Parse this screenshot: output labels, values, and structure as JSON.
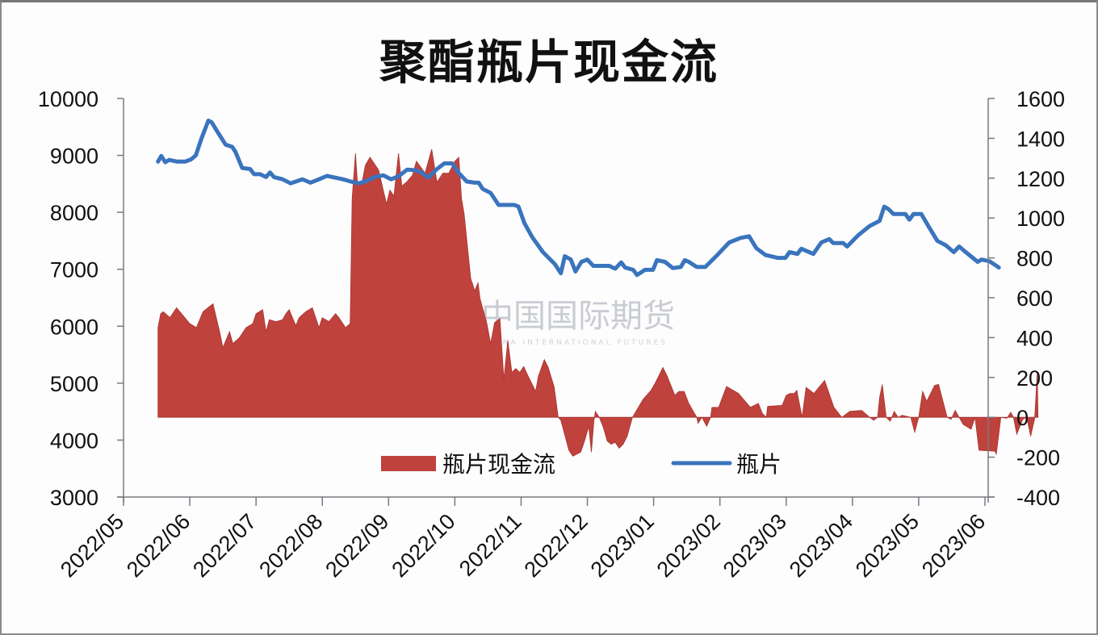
{
  "chart_data": {
    "type": "area+line",
    "title": "聚酯瓶片现金流",
    "xlabel": "",
    "ylabel_left": "",
    "ylabel_right": "",
    "x_tick_labels": [
      "2022/05",
      "2022/06",
      "2022/07",
      "2022/08",
      "2022/09",
      "2022/10",
      "2022/11",
      "2022/12",
      "2023/01",
      "2023/02",
      "2023/03",
      "2023/04",
      "2023/05",
      "2023/06"
    ],
    "y_left": {
      "ticks": [
        10000,
        9000,
        8000,
        7000,
        6000,
        5000,
        4000,
        3000
      ],
      "range": [
        3000,
        10000
      ]
    },
    "y_right": {
      "ticks": [
        1600,
        1400,
        1200,
        1000,
        800,
        600,
        400,
        200,
        0,
        -200,
        -400
      ],
      "range": [
        -400,
        1600
      ]
    },
    "grid": false,
    "legend_position": "bottom-center-inside",
    "series": [
      {
        "name": "瓶片现金流",
        "kind": "area",
        "axis": "right",
        "color": "#c0423d",
        "points_month_offset_value": [
          [
            0.52,
            0
          ],
          [
            0.52,
            450
          ],
          [
            0.56,
            520
          ],
          [
            0.6,
            530
          ],
          [
            0.7,
            500
          ],
          [
            0.8,
            550
          ],
          [
            0.9,
            510
          ],
          [
            1.0,
            470
          ],
          [
            1.1,
            450
          ],
          [
            1.2,
            530
          ],
          [
            1.35,
            570
          ],
          [
            1.45,
            430
          ],
          [
            1.5,
            350
          ],
          [
            1.6,
            430
          ],
          [
            1.65,
            370
          ],
          [
            1.75,
            400
          ],
          [
            1.85,
            450
          ],
          [
            1.95,
            470
          ],
          [
            2.0,
            520
          ],
          [
            2.1,
            540
          ],
          [
            2.15,
            430
          ],
          [
            2.2,
            490
          ],
          [
            2.3,
            480
          ],
          [
            2.4,
            490
          ],
          [
            2.45,
            520
          ],
          [
            2.5,
            540
          ],
          [
            2.6,
            460
          ],
          [
            2.65,
            500
          ],
          [
            2.75,
            530
          ],
          [
            2.85,
            550
          ],
          [
            2.95,
            450
          ],
          [
            3.0,
            500
          ],
          [
            3.1,
            480
          ],
          [
            3.2,
            520
          ],
          [
            3.25,
            500
          ],
          [
            3.35,
            450
          ],
          [
            3.42,
            470
          ],
          [
            3.45,
            1100
          ],
          [
            3.5,
            1325
          ],
          [
            3.53,
            1180
          ],
          [
            3.6,
            1180
          ],
          [
            3.65,
            1265
          ],
          [
            3.72,
            1305
          ],
          [
            3.8,
            1265
          ],
          [
            3.85,
            1240
          ],
          [
            3.92,
            1140
          ],
          [
            3.97,
            1070
          ],
          [
            4.02,
            1140
          ],
          [
            4.08,
            1110
          ],
          [
            4.15,
            1325
          ],
          [
            4.2,
            1160
          ],
          [
            4.27,
            1180
          ],
          [
            4.36,
            1215
          ],
          [
            4.42,
            1285
          ],
          [
            4.55,
            1225
          ],
          [
            4.65,
            1345
          ],
          [
            4.73,
            1180
          ],
          [
            4.82,
            1225
          ],
          [
            4.91,
            1225
          ],
          [
            5.0,
            1285
          ],
          [
            5.06,
            1305
          ],
          [
            5.1,
            1100
          ],
          [
            5.14,
            1020
          ],
          [
            5.24,
            695
          ],
          [
            5.3,
            635
          ],
          [
            5.35,
            675
          ],
          [
            5.38,
            595
          ],
          [
            5.48,
            475
          ],
          [
            5.54,
            370
          ],
          [
            5.6,
            475
          ],
          [
            5.68,
            495
          ],
          [
            5.74,
            190
          ],
          [
            5.8,
            385
          ],
          [
            5.86,
            225
          ],
          [
            5.92,
            245
          ],
          [
            5.98,
            225
          ],
          [
            6.04,
            255
          ],
          [
            6.1,
            210
          ],
          [
            6.22,
            130
          ],
          [
            6.26,
            205
          ],
          [
            6.35,
            290
          ],
          [
            6.41,
            250
          ],
          [
            6.5,
            150
          ],
          [
            6.56,
            0
          ],
          [
            6.6,
            -15
          ],
          [
            6.72,
            -165
          ],
          [
            6.78,
            -195
          ],
          [
            6.9,
            -175
          ],
          [
            6.96,
            -115
          ],
          [
            7.02,
            -45
          ],
          [
            7.06,
            -175
          ],
          [
            7.1,
            -15
          ],
          [
            7.12,
            30
          ],
          [
            7.18,
            0
          ],
          [
            7.24,
            -50
          ],
          [
            7.3,
            -120
          ],
          [
            7.36,
            -135
          ],
          [
            7.42,
            -125
          ],
          [
            7.48,
            -155
          ],
          [
            7.54,
            -135
          ],
          [
            7.6,
            -95
          ],
          [
            7.68,
            0
          ],
          [
            7.84,
            90
          ],
          [
            7.96,
            135
          ],
          [
            8.02,
            170
          ],
          [
            8.14,
            250
          ],
          [
            8.2,
            210
          ],
          [
            8.32,
            110
          ],
          [
            8.38,
            130
          ],
          [
            8.46,
            130
          ],
          [
            8.53,
            70
          ],
          [
            8.65,
            0
          ],
          [
            8.67,
            -30
          ],
          [
            8.73,
            0
          ],
          [
            8.8,
            -45
          ],
          [
            8.86,
            0
          ],
          [
            8.88,
            50
          ],
          [
            8.98,
            50
          ],
          [
            9.1,
            155
          ],
          [
            9.28,
            120
          ],
          [
            9.46,
            50
          ],
          [
            9.58,
            70
          ],
          [
            9.64,
            20
          ],
          [
            9.7,
            0
          ],
          [
            9.72,
            55
          ],
          [
            9.94,
            60
          ],
          [
            10.0,
            110
          ],
          [
            10.06,
            120
          ],
          [
            10.12,
            120
          ],
          [
            10.16,
            135
          ],
          [
            10.24,
            0
          ],
          [
            10.3,
            150
          ],
          [
            10.42,
            120
          ],
          [
            10.48,
            145
          ],
          [
            10.58,
            185
          ],
          [
            10.72,
            50
          ],
          [
            10.84,
            0
          ],
          [
            10.96,
            30
          ],
          [
            11.14,
            35
          ],
          [
            11.26,
            0
          ],
          [
            11.32,
            -15
          ],
          [
            11.38,
            0
          ],
          [
            11.41,
            100
          ],
          [
            11.45,
            165
          ],
          [
            11.51,
            0
          ],
          [
            11.57,
            -20
          ],
          [
            11.63,
            30
          ],
          [
            11.69,
            0
          ],
          [
            11.75,
            10
          ],
          [
            11.88,
            0
          ],
          [
            11.94,
            -75
          ],
          [
            12.0,
            0
          ],
          [
            12.06,
            130
          ],
          [
            12.12,
            80
          ],
          [
            12.24,
            160
          ],
          [
            12.3,
            165
          ],
          [
            12.43,
            0
          ],
          [
            12.49,
            -10
          ],
          [
            12.55,
            35
          ],
          [
            12.61,
            0
          ],
          [
            12.67,
            -35
          ],
          [
            12.79,
            -60
          ],
          [
            12.85,
            0
          ],
          [
            12.91,
            -165
          ],
          [
            13.15,
            -170
          ],
          [
            13.17,
            -185
          ],
          [
            13.24,
            0
          ],
          [
            13.33,
            -5
          ],
          [
            13.39,
            25
          ],
          [
            13.43,
            0
          ],
          [
            13.48,
            -85
          ],
          [
            13.57,
            -10
          ],
          [
            13.63,
            0
          ],
          [
            13.69,
            -95
          ],
          [
            13.75,
            -5
          ],
          [
            13.79,
            230
          ],
          [
            13.8,
            0
          ]
        ]
      },
      {
        "name": "瓶片",
        "kind": "line",
        "axis": "left",
        "color": "#3a74bd",
        "points_month_offset_value": [
          [
            0.52,
            8890
          ],
          [
            0.57,
            8990
          ],
          [
            0.63,
            8880
          ],
          [
            0.69,
            8920
          ],
          [
            0.81,
            8890
          ],
          [
            0.93,
            8890
          ],
          [
            1.02,
            8930
          ],
          [
            1.09,
            9000
          ],
          [
            1.18,
            9310
          ],
          [
            1.28,
            9610
          ],
          [
            1.33,
            9580
          ],
          [
            1.42,
            9410
          ],
          [
            1.54,
            9190
          ],
          [
            1.64,
            9150
          ],
          [
            1.69,
            9060
          ],
          [
            1.79,
            8780
          ],
          [
            1.91,
            8760
          ],
          [
            1.97,
            8670
          ],
          [
            2.06,
            8670
          ],
          [
            2.15,
            8620
          ],
          [
            2.21,
            8700
          ],
          [
            2.27,
            8620
          ],
          [
            2.4,
            8580
          ],
          [
            2.52,
            8510
          ],
          [
            2.7,
            8580
          ],
          [
            2.82,
            8520
          ],
          [
            2.95,
            8580
          ],
          [
            3.07,
            8640
          ],
          [
            3.19,
            8610
          ],
          [
            3.31,
            8580
          ],
          [
            3.43,
            8540
          ],
          [
            3.55,
            8510
          ],
          [
            3.67,
            8550
          ],
          [
            3.79,
            8620
          ],
          [
            3.92,
            8650
          ],
          [
            4.04,
            8580
          ],
          [
            4.16,
            8640
          ],
          [
            4.28,
            8750
          ],
          [
            4.4,
            8740
          ],
          [
            4.48,
            8710
          ],
          [
            4.6,
            8610
          ],
          [
            4.72,
            8750
          ],
          [
            4.84,
            8860
          ],
          [
            4.96,
            8860
          ],
          [
            5.06,
            8690
          ],
          [
            5.18,
            8540
          ],
          [
            5.3,
            8520
          ],
          [
            5.36,
            8520
          ],
          [
            5.42,
            8410
          ],
          [
            5.54,
            8340
          ],
          [
            5.66,
            8130
          ],
          [
            5.78,
            8130
          ],
          [
            5.9,
            8130
          ],
          [
            5.96,
            8100
          ],
          [
            6.05,
            7810
          ],
          [
            6.17,
            7560
          ],
          [
            6.33,
            7300
          ],
          [
            6.51,
            7090
          ],
          [
            6.6,
            6930
          ],
          [
            6.66,
            7230
          ],
          [
            6.75,
            7170
          ],
          [
            6.82,
            6960
          ],
          [
            6.91,
            7130
          ],
          [
            7.0,
            7170
          ],
          [
            7.09,
            7060
          ],
          [
            7.21,
            7060
          ],
          [
            7.33,
            7060
          ],
          [
            7.42,
            7010
          ],
          [
            7.51,
            7120
          ],
          [
            7.57,
            7030
          ],
          [
            7.69,
            6990
          ],
          [
            7.75,
            6900
          ],
          [
            7.87,
            6990
          ],
          [
            7.99,
            6990
          ],
          [
            8.05,
            7160
          ],
          [
            8.17,
            7130
          ],
          [
            8.29,
            7020
          ],
          [
            8.41,
            7040
          ],
          [
            8.47,
            7160
          ],
          [
            8.53,
            7130
          ],
          [
            8.65,
            7040
          ],
          [
            8.78,
            7040
          ],
          [
            8.96,
            7250
          ],
          [
            9.14,
            7470
          ],
          [
            9.31,
            7550
          ],
          [
            9.44,
            7580
          ],
          [
            9.55,
            7370
          ],
          [
            9.69,
            7250
          ],
          [
            9.87,
            7200
          ],
          [
            9.99,
            7200
          ],
          [
            10.05,
            7300
          ],
          [
            10.17,
            7270
          ],
          [
            10.23,
            7360
          ],
          [
            10.41,
            7270
          ],
          [
            10.53,
            7470
          ],
          [
            10.65,
            7530
          ],
          [
            10.71,
            7460
          ],
          [
            10.86,
            7460
          ],
          [
            10.92,
            7400
          ],
          [
            11.08,
            7590
          ],
          [
            11.26,
            7760
          ],
          [
            11.41,
            7850
          ],
          [
            11.48,
            8100
          ],
          [
            11.54,
            8060
          ],
          [
            11.62,
            7970
          ],
          [
            11.8,
            7970
          ],
          [
            11.86,
            7870
          ],
          [
            11.92,
            7970
          ],
          [
            12.04,
            7970
          ],
          [
            12.16,
            7730
          ],
          [
            12.28,
            7500
          ],
          [
            12.41,
            7420
          ],
          [
            12.53,
            7300
          ],
          [
            12.61,
            7400
          ],
          [
            12.71,
            7300
          ],
          [
            12.89,
            7130
          ],
          [
            12.95,
            7170
          ],
          [
            13.07,
            7140
          ],
          [
            13.21,
            7030
          ]
        ]
      }
    ],
    "watermark": {
      "logo": "CIFCO",
      "text": "中国国际期货",
      "subtext": "CHINA INTERNATIONAL FUTURES"
    }
  },
  "legend": {
    "items": [
      {
        "label": "瓶片现金流",
        "swatch": "area",
        "color": "#c0423d"
      },
      {
        "label": "瓶片",
        "swatch": "line",
        "color": "#3a74bd"
      }
    ]
  }
}
